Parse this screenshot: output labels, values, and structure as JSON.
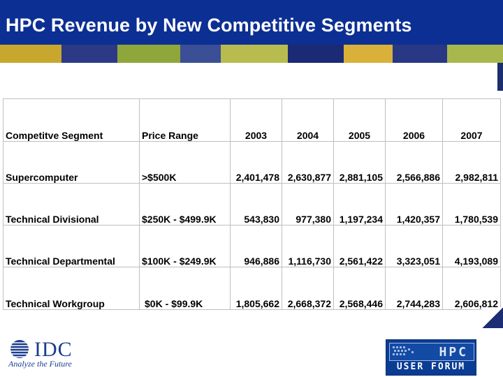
{
  "slide": {
    "title": "HPC Revenue by New Competitive Segments"
  },
  "table": {
    "headers": [
      "Competitve Segment",
      "Price Range",
      "2003",
      "2004",
      "2005",
      "2006",
      "2007"
    ],
    "rows": [
      [
        "Supercomputer",
        ">$500K",
        "2,401,478",
        "2,630,877",
        "2,881,105",
        "2,566,886",
        "2,982,811"
      ],
      [
        "Technical Divisional",
        "$250K - $499.9K",
        "543,830",
        "977,380",
        "1,197,234",
        "1,420,357",
        "1,780,539"
      ],
      [
        "Technical Departmental",
        "$100K - $249.9K",
        "946,886",
        "1,116,730",
        "2,561,422",
        "3,323,051",
        "4,193,089"
      ],
      [
        "Technical Workgroup",
        "$0K - $99.9K",
        "1,805,662",
        "2,668,372",
        "2,568,446",
        "2,744,283",
        "2,606,812"
      ]
    ]
  },
  "logos": {
    "idc_name": "IDC",
    "idc_tagline": "Analyze the Future",
    "hpc_name": "HPC",
    "hpc_sub": "USER FORUM"
  },
  "colors": {
    "title_bar": "#0c2f94",
    "title_text": "#ffffff",
    "stripe": [
      "#c8a72e",
      "#2c3a86",
      "#8fa63a",
      "#3a4f95",
      "#b8bc4f",
      "#1a2a74",
      "#d9b13a"
    ]
  }
}
